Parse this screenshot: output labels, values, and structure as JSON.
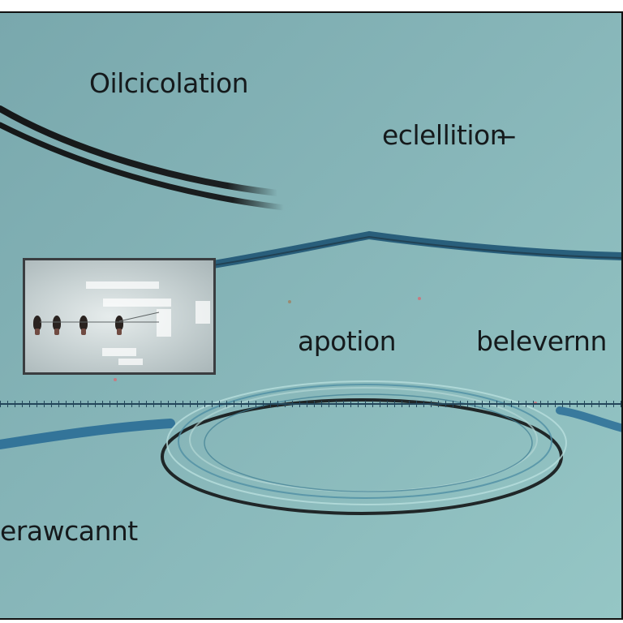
{
  "labels": {
    "top_left": "Oilcicolation",
    "top_right": "eclellition ̶",
    "middle_center": "apotion",
    "middle_right": "belevernn",
    "bottom_left": "erawcannt"
  },
  "colors": {
    "background": "#86b5b8",
    "frame": "#111111",
    "text": "#151a1c",
    "dark_stroke": "#16191b",
    "blue_stroke": "#245a78",
    "light_stroke": "#a8d1d1"
  },
  "icons": {
    "inset_figures": "figure-icon"
  }
}
